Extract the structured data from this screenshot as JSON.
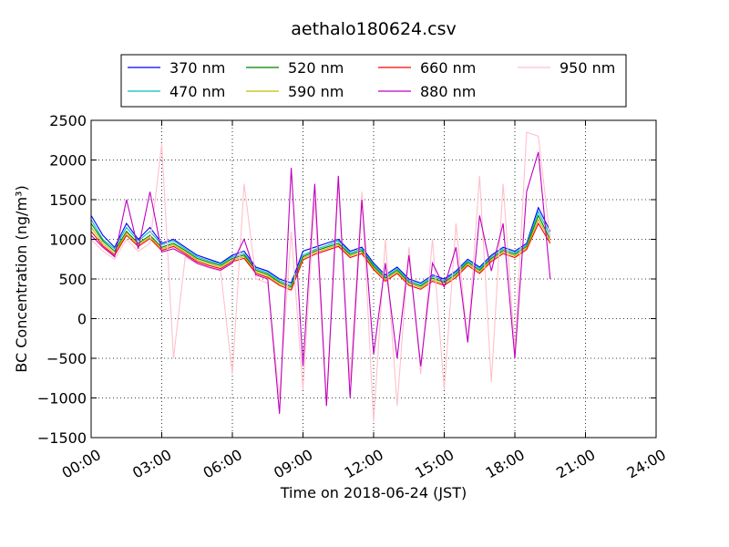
{
  "chart_data": {
    "type": "line",
    "title": "aethalo180624.csv",
    "xlabel": "Time on 2018-06-24 (JST)",
    "ylabel": "BC Concentration (ng/m³)",
    "xlim": [
      "00:00",
      "24:00"
    ],
    "ylim": [
      -1500,
      2500
    ],
    "x_ticks": [
      "00:00",
      "03:00",
      "06:00",
      "09:00",
      "12:00",
      "15:00",
      "18:00",
      "21:00",
      "24:00"
    ],
    "y_ticks": [
      "−1500",
      "−1000",
      "−500",
      "0",
      "500",
      "1000",
      "1500",
      "2000",
      "2500"
    ],
    "grid": true,
    "legend_position": "top, above plot",
    "series": [
      {
        "name": "370 nm",
        "color": "#0000ff",
        "x": [
          "00:00",
          "00:30",
          "01:00",
          "01:30",
          "02:00",
          "02:30",
          "03:00",
          "03:30",
          "04:00",
          "04:30",
          "05:00",
          "05:30",
          "06:00",
          "06:30",
          "07:00",
          "07:30",
          "08:00",
          "08:30",
          "09:00",
          "09:30",
          "10:00",
          "10:30",
          "11:00",
          "11:30",
          "12:00",
          "12:30",
          "13:00",
          "13:30",
          "14:00",
          "14:30",
          "15:00",
          "15:30",
          "16:00",
          "16:30",
          "17:00",
          "17:30",
          "18:00",
          "18:30",
          "19:00",
          "19:30"
        ],
        "values": [
          1300,
          1050,
          900,
          1200,
          1000,
          1150,
          950,
          1000,
          900,
          800,
          750,
          700,
          800,
          850,
          650,
          600,
          500,
          450,
          850,
          900,
          950,
          1000,
          850,
          900,
          700,
          550,
          650,
          500,
          450,
          550,
          500,
          600,
          750,
          650,
          800,
          900,
          850,
          950,
          1400,
          1100
        ]
      },
      {
        "name": "470 nm",
        "color": "#00bfbf",
        "x": [
          "00:00",
          "00:30",
          "01:00",
          "01:30",
          "02:00",
          "02:30",
          "03:00",
          "03:30",
          "04:00",
          "04:30",
          "05:00",
          "05:30",
          "06:00",
          "06:30",
          "07:00",
          "07:30",
          "08:00",
          "08:30",
          "09:00",
          "09:30",
          "10:00",
          "10:30",
          "11:00",
          "11:30",
          "12:00",
          "12:30",
          "13:00",
          "13:30",
          "14:00",
          "14:30",
          "15:00",
          "15:30",
          "16:00",
          "16:30",
          "17:00",
          "17:30",
          "18:00",
          "18:30",
          "19:00",
          "19:30"
        ],
        "values": [
          1250,
          1000,
          880,
          1150,
          980,
          1100,
          930,
          980,
          880,
          780,
          730,
          690,
          780,
          820,
          630,
          580,
          480,
          420,
          800,
          870,
          920,
          980,
          830,
          880,
          680,
          530,
          630,
          480,
          430,
          530,
          480,
          580,
          730,
          630,
          780,
          880,
          830,
          930,
          1350,
          1050
        ]
      },
      {
        "name": "520 nm",
        "color": "#008000",
        "x": [
          "00:00",
          "00:30",
          "01:00",
          "01:30",
          "02:00",
          "02:30",
          "03:00",
          "03:30",
          "04:00",
          "04:30",
          "05:00",
          "05:30",
          "06:00",
          "06:30",
          "07:00",
          "07:30",
          "08:00",
          "08:30",
          "09:00",
          "09:30",
          "10:00",
          "10:30",
          "11:00",
          "11:30",
          "12:00",
          "12:30",
          "13:00",
          "13:30",
          "14:00",
          "14:30",
          "15:00",
          "15:30",
          "16:00",
          "16:30",
          "17:00",
          "17:30",
          "18:00",
          "18:30",
          "19:00",
          "19:30"
        ],
        "values": [
          1200,
          980,
          850,
          1100,
          950,
          1050,
          900,
          950,
          860,
          760,
          710,
          670,
          760,
          800,
          610,
          560,
          460,
          400,
          780,
          850,
          900,
          950,
          810,
          860,
          660,
          510,
          610,
          460,
          410,
          510,
          460,
          560,
          710,
          610,
          760,
          860,
          810,
          910,
          1300,
          1000
        ]
      },
      {
        "name": "590 nm",
        "color": "#bfbf00",
        "x": [
          "00:00",
          "00:30",
          "01:00",
          "01:30",
          "02:00",
          "02:30",
          "03:00",
          "03:30",
          "04:00",
          "04:30",
          "05:00",
          "05:30",
          "06:00",
          "06:30",
          "07:00",
          "07:30",
          "08:00",
          "08:30",
          "09:00",
          "09:30",
          "10:00",
          "10:30",
          "11:00",
          "11:30",
          "12:00",
          "12:30",
          "13:00",
          "13:30",
          "14:00",
          "14:30",
          "15:00",
          "15:30",
          "16:00",
          "16:30",
          "17:00",
          "17:30",
          "18:00",
          "18:30",
          "19:00",
          "19:30"
        ],
        "values": [
          1150,
          950,
          820,
          1080,
          930,
          1030,
          880,
          930,
          840,
          740,
          690,
          650,
          740,
          780,
          590,
          540,
          440,
          380,
          760,
          830,
          880,
          930,
          790,
          840,
          640,
          490,
          590,
          440,
          390,
          490,
          440,
          540,
          690,
          590,
          740,
          840,
          790,
          890,
          1250,
          980
        ]
      },
      {
        "name": "660 nm",
        "color": "#ff0000",
        "x": [
          "00:00",
          "00:30",
          "01:00",
          "01:30",
          "02:00",
          "02:30",
          "03:00",
          "03:30",
          "04:00",
          "04:30",
          "05:00",
          "05:30",
          "06:00",
          "06:30",
          "07:00",
          "07:30",
          "08:00",
          "08:30",
          "09:00",
          "09:30",
          "10:00",
          "10:30",
          "11:00",
          "11:30",
          "12:00",
          "12:30",
          "13:00",
          "13:30",
          "14:00",
          "14:30",
          "15:00",
          "15:30",
          "16:00",
          "16:30",
          "17:00",
          "17:30",
          "18:00",
          "18:30",
          "19:00",
          "19:30"
        ],
        "values": [
          1100,
          920,
          800,
          1050,
          910,
          1010,
          860,
          910,
          820,
          720,
          670,
          630,
          720,
          760,
          570,
          520,
          420,
          360,
          740,
          810,
          860,
          910,
          770,
          820,
          620,
          470,
          570,
          420,
          370,
          470,
          420,
          520,
          670,
          570,
          720,
          820,
          770,
          870,
          1200,
          950
        ]
      },
      {
        "name": "880 nm",
        "color": "#bf00bf",
        "x": [
          "00:00",
          "00:30",
          "01:00",
          "01:30",
          "02:00",
          "02:30",
          "03:00",
          "03:30",
          "04:00",
          "04:30",
          "05:00",
          "05:30",
          "06:00",
          "06:30",
          "07:00",
          "07:30",
          "08:00",
          "08:30",
          "09:00",
          "09:30",
          "10:00",
          "10:30",
          "11:00",
          "11:30",
          "12:00",
          "12:30",
          "13:00",
          "13:30",
          "14:00",
          "14:30",
          "15:00",
          "15:30",
          "16:00",
          "16:30",
          "17:00",
          "17:30",
          "18:00",
          "18:30",
          "19:00",
          "19:30"
        ],
        "values": [
          1050,
          900,
          780,
          1500,
          880,
          1600,
          840,
          880,
          800,
          700,
          650,
          610,
          700,
          1000,
          550,
          500,
          -1200,
          1900,
          -600,
          1700,
          -1100,
          1800,
          -1000,
          1500,
          -450,
          700,
          -500,
          800,
          -600,
          700,
          400,
          900,
          -300,
          1300,
          600,
          1200,
          -500,
          1600,
          2100,
          500
        ]
      },
      {
        "name": "950 nm",
        "color": "#ffc0cb",
        "x": [
          "00:00",
          "00:30",
          "01:00",
          "01:30",
          "02:00",
          "02:30",
          "03:00",
          "03:30",
          "04:00",
          "04:30",
          "05:00",
          "05:30",
          "06:00",
          "06:30",
          "07:00",
          "07:30",
          "08:00",
          "08:30",
          "09:00",
          "09:30",
          "10:00",
          "10:30",
          "11:00",
          "11:30",
          "12:00",
          "12:30",
          "13:00",
          "13:30",
          "14:00",
          "14:30",
          "15:00",
          "15:30",
          "16:00",
          "16:30",
          "17:00",
          "17:30",
          "18:00",
          "18:30",
          "19:00",
          "19:30"
        ],
        "values": [
          1000,
          850,
          750,
          1000,
          850,
          950,
          2200,
          -500,
          780,
          690,
          640,
          600,
          -700,
          1700,
          500,
          450,
          -1000,
          1100,
          -900,
          1500,
          -1100,
          1700,
          -800,
          1600,
          -1300,
          1000,
          -1100,
          900,
          -700,
          1000,
          -900,
          1200,
          -300,
          1800,
          -800,
          1700,
          -400,
          2350,
          2300,
          1000
        ]
      }
    ]
  }
}
